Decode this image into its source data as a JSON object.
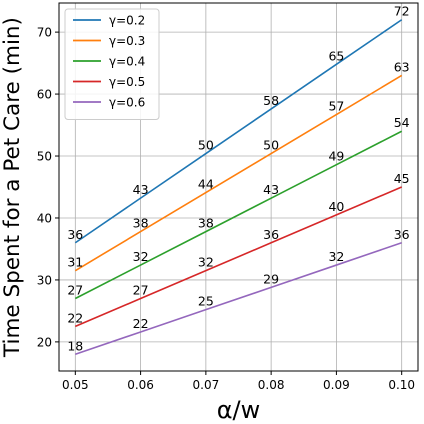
{
  "chart_data": {
    "type": "line",
    "xlabel": "α/w",
    "ylabel": "Time Spent for a Pet Care (min)",
    "x": [
      0.05,
      0.06,
      0.07,
      0.08,
      0.09,
      0.1
    ],
    "x_ticks": [
      "0.05",
      "0.06",
      "0.07",
      "0.08",
      "0.09",
      "0.10"
    ],
    "y_ticks": [
      "20",
      "30",
      "40",
      "50",
      "60",
      "70"
    ],
    "xlim": [
      0.0475,
      0.1025
    ],
    "ylim": [
      15.3,
      74.7
    ],
    "grid": true,
    "legend_position": "top-left",
    "series": [
      {
        "name": "γ=0.2",
        "color": "#1f77b4",
        "values": [
          36,
          43.2,
          50.4,
          57.6,
          64.8,
          72
        ],
        "labels": [
          "36",
          "43",
          "50",
          "58",
          "65",
          "72"
        ]
      },
      {
        "name": "γ=0.3",
        "color": "#ff7f0e",
        "values": [
          31.5,
          37.8,
          44.1,
          50.4,
          56.7,
          63
        ],
        "labels": [
          "31",
          "38",
          "44",
          "50",
          "57",
          "63"
        ]
      },
      {
        "name": "γ=0.4",
        "color": "#2ca02c",
        "values": [
          27,
          32.4,
          37.8,
          43.2,
          48.6,
          54
        ],
        "labels": [
          "27",
          "32",
          "38",
          "43",
          "49",
          "54"
        ]
      },
      {
        "name": "γ=0.5",
        "color": "#d62728",
        "values": [
          22.5,
          27,
          31.5,
          36,
          40.5,
          45
        ],
        "labels": [
          "22",
          "27",
          "32",
          "36",
          "40",
          "45"
        ]
      },
      {
        "name": "γ=0.6",
        "color": "#9467bd",
        "values": [
          18,
          21.6,
          25.2,
          28.8,
          32.4,
          36
        ],
        "labels": [
          "18",
          "22",
          "25",
          "29",
          "32",
          "36"
        ]
      }
    ]
  }
}
